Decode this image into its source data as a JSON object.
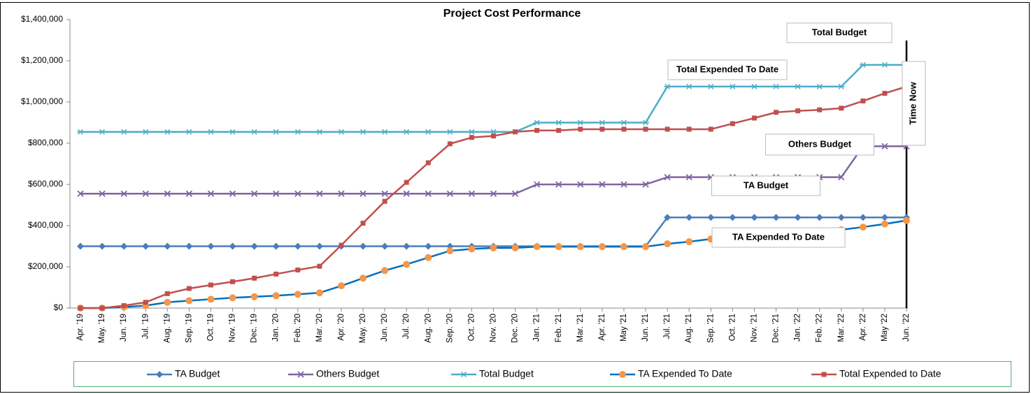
{
  "chart_data": {
    "type": "line",
    "title": "Project Cost Performance",
    "categories": [
      "Apr. '19",
      "May. '19",
      "Jun. '19",
      "Jul. '19",
      "Aug. '19",
      "Sep. '19",
      "Oct. '19",
      "Nov. '19",
      "Dec. '19",
      "Jan. '20",
      "Feb. '20",
      "Mar. '20",
      "Apr. '20",
      "May. '20",
      "Jun. '20",
      "Jul. '20",
      "Aug. '20",
      "Sep. '20",
      "Oct. '20",
      "Nov. '20",
      "Dec. '20",
      "Jan. '21",
      "Feb. '21",
      "Mar. '21",
      "Apr. '21",
      "May '21",
      "Jun. '21",
      "Jul. '21",
      "Aug. '21",
      "Sep. '21",
      "Oct. '21",
      "Nov. '21",
      "Dec. '21",
      "Jan. '22",
      "Feb. '22",
      "Mar. '22",
      "Apr. '22",
      "May '22",
      "Jun. '22"
    ],
    "series": [
      {
        "name": "TA Budget",
        "color": "#4a7ebb",
        "marker": "diamond",
        "values": [
          300000,
          300000,
          300000,
          300000,
          300000,
          300000,
          300000,
          300000,
          300000,
          300000,
          300000,
          300000,
          300000,
          300000,
          300000,
          300000,
          300000,
          300000,
          300000,
          300000,
          300000,
          300000,
          300000,
          300000,
          300000,
          300000,
          300000,
          440000,
          440000,
          440000,
          440000,
          440000,
          440000,
          440000,
          440000,
          440000,
          440000,
          440000,
          440000
        ]
      },
      {
        "name": "Others Budget",
        "color": "#8064a2",
        "marker": "x",
        "values": [
          555000,
          555000,
          555000,
          555000,
          555000,
          555000,
          555000,
          555000,
          555000,
          555000,
          555000,
          555000,
          555000,
          555000,
          555000,
          555000,
          555000,
          555000,
          555000,
          555000,
          555000,
          600000,
          600000,
          600000,
          600000,
          600000,
          600000,
          635000,
          635000,
          635000,
          635000,
          635000,
          635000,
          635000,
          635000,
          635000,
          785000,
          785000,
          785000
        ]
      },
      {
        "name": "Total Budget",
        "color": "#4bacc6",
        "marker": "star",
        "values": [
          855000,
          855000,
          855000,
          855000,
          855000,
          855000,
          855000,
          855000,
          855000,
          855000,
          855000,
          855000,
          855000,
          855000,
          855000,
          855000,
          855000,
          855000,
          855000,
          855000,
          855000,
          900000,
          900000,
          900000,
          900000,
          900000,
          900000,
          1075000,
          1075000,
          1075000,
          1075000,
          1075000,
          1075000,
          1075000,
          1075000,
          1075000,
          1180000,
          1180000,
          1180000
        ]
      },
      {
        "name": "TA Expended To Date",
        "color": "#0070c0",
        "marker": "circle",
        "marker_color": "#f79646",
        "values": [
          0,
          0,
          5000,
          12000,
          28000,
          36000,
          43000,
          50000,
          55000,
          60000,
          67000,
          74000,
          108000,
          145000,
          182000,
          212000,
          245000,
          278000,
          287000,
          292000,
          292000,
          298000,
          298000,
          298000,
          298000,
          298000,
          298000,
          312000,
          322000,
          335000,
          345000,
          355000,
          362000,
          370000,
          375000,
          380000,
          393000,
          408000,
          425000
        ]
      },
      {
        "name": "Total Expended to Date",
        "color": "#c0504d",
        "marker": "square",
        "values": [
          0,
          0,
          12000,
          28000,
          70000,
          95000,
          112000,
          128000,
          145000,
          165000,
          185000,
          203000,
          305000,
          412000,
          518000,
          610000,
          705000,
          797000,
          828000,
          835000,
          855000,
          862000,
          862000,
          868000,
          868000,
          868000,
          868000,
          868000,
          868000,
          868000,
          895000,
          922000,
          950000,
          957000,
          962000,
          970000,
          1005000,
          1042000,
          1075000
        ]
      }
    ],
    "ylim": [
      0,
      1400000
    ],
    "yticks": [
      {
        "value": 0,
        "label": "$0"
      },
      {
        "value": 200000,
        "label": "$200,000"
      },
      {
        "value": 400000,
        "label": "$400,000"
      },
      {
        "value": 600000,
        "label": "$600,000"
      },
      {
        "value": 800000,
        "label": "$800,000"
      },
      {
        "value": 1000000,
        "label": "$1,000,000"
      },
      {
        "value": 1200000,
        "label": "$1,200,000"
      },
      {
        "value": 1400000,
        "label": "$1,400,000"
      }
    ],
    "annotations": [
      "Total Budget",
      "Total Expended To Date",
      "Others Budget",
      "TA Budget",
      "TA Expended To Date",
      "Time Now"
    ],
    "legend": "bottom"
  }
}
